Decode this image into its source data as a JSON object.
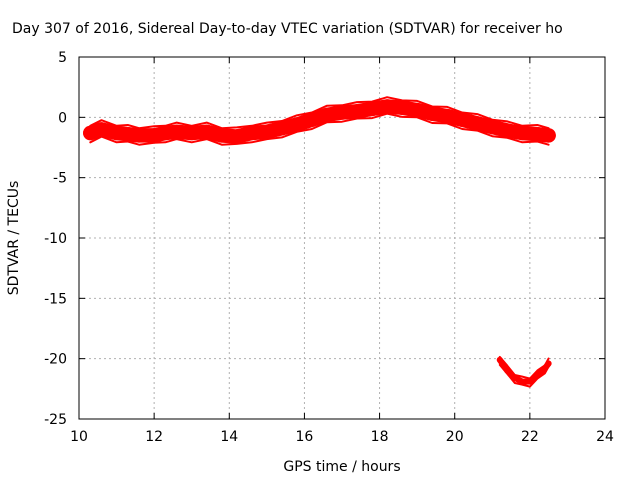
{
  "chart_data": {
    "type": "line",
    "title": "Day 307 of 2016, Sidereal Day-to-day VTEC variation (SDTVAR) for receiver ho",
    "xlabel": "GPS time / hours",
    "ylabel": "SDTVAR / TECUs",
    "xlim": [
      10,
      24
    ],
    "ylim": [
      -25,
      5
    ],
    "xticks": [
      "10",
      "12",
      "14",
      "16",
      "18",
      "20",
      "22",
      "24"
    ],
    "yticks": [
      "5",
      "0",
      "-5",
      "-10",
      "-15",
      "-20",
      "-25"
    ],
    "grid": true,
    "legend": "none",
    "series": [
      {
        "color": "#ff0000",
        "band_width": 1.2,
        "points": [
          [
            10.3,
            -1.3
          ],
          [
            10.6,
            -1.0
          ],
          [
            11.0,
            -1.3
          ],
          [
            11.3,
            -1.4
          ],
          [
            11.6,
            -1.5
          ],
          [
            12.0,
            -1.5
          ],
          [
            12.3,
            -1.3
          ],
          [
            12.6,
            -1.2
          ],
          [
            13.0,
            -1.3
          ],
          [
            13.4,
            -1.2
          ],
          [
            13.8,
            -1.5
          ],
          [
            14.2,
            -1.6
          ],
          [
            14.6,
            -1.3
          ],
          [
            15.0,
            -1.2
          ],
          [
            15.4,
            -0.9
          ],
          [
            15.8,
            -0.6
          ],
          [
            16.2,
            -0.2
          ],
          [
            16.6,
            0.2
          ],
          [
            17.0,
            0.4
          ],
          [
            17.4,
            0.5
          ],
          [
            17.8,
            0.7
          ],
          [
            18.2,
            0.9
          ],
          [
            18.6,
            0.8
          ],
          [
            19.0,
            0.6
          ],
          [
            19.4,
            0.3
          ],
          [
            19.8,
            0.1
          ],
          [
            20.2,
            -0.2
          ],
          [
            20.6,
            -0.5
          ],
          [
            21.0,
            -0.8
          ],
          [
            21.4,
            -1.1
          ],
          [
            21.8,
            -1.3
          ],
          [
            22.2,
            -1.4
          ],
          [
            22.5,
            -1.5
          ]
        ]
      },
      {
        "color": "#ff0000",
        "band_width": 0.5,
        "points": [
          [
            21.2,
            -20.1
          ],
          [
            21.4,
            -21.0
          ],
          [
            21.6,
            -21.6
          ],
          [
            21.8,
            -21.9
          ],
          [
            22.0,
            -21.9
          ],
          [
            22.2,
            -21.4
          ],
          [
            22.4,
            -20.8
          ],
          [
            22.5,
            -20.4
          ]
        ]
      }
    ]
  }
}
